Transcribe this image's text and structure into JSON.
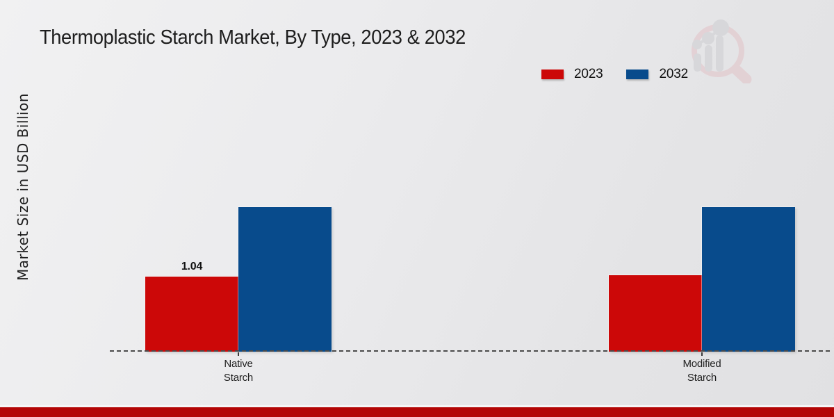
{
  "page": {
    "title": "Thermoplastic Starch Market, By Type, 2023 & 2032"
  },
  "colors": {
    "series_2023_red": "#cc0808",
    "series_2032_blue": "#084b8c",
    "footer_accent": "#b30505",
    "axis_dash": "#4a4a4a",
    "title_text": "#1d1d1d"
  },
  "chart_data": {
    "type": "bar",
    "title": "Thermoplastic Starch Market, By Type, 2023 & 2032",
    "xlabel": "",
    "ylabel": "Market Size in USD Billion",
    "categories": [
      "Native Starch",
      "Modified Starch"
    ],
    "series": [
      {
        "name": "2023",
        "color": "#cc0808",
        "values": [
          1.04,
          1.06
        ]
      },
      {
        "name": "2032",
        "color": "#084b8c",
        "values": [
          2.0,
          2.0
        ]
      }
    ],
    "ylim": [
      0,
      2.4
    ],
    "grid": false,
    "legend_position": "top-right",
    "baseline_style": "dashed",
    "bar_value_labels": [
      {
        "category_index": 0,
        "series_index": 0,
        "text": "1.04"
      }
    ]
  },
  "legend": {
    "items": [
      {
        "label": "2023",
        "color": "#cc0808"
      },
      {
        "label": "2032",
        "color": "#084b8c"
      }
    ]
  },
  "axes": {
    "y_label": "Market Size in USD Billion"
  },
  "watermark": {
    "name": "market-research-logo"
  }
}
